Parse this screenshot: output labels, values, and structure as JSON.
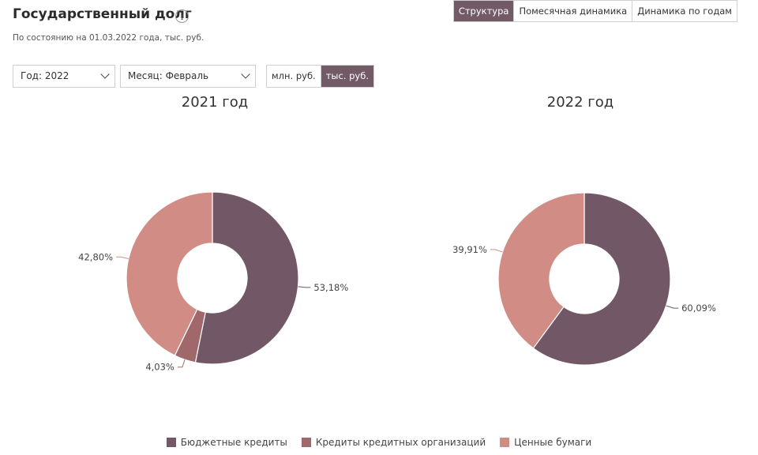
{
  "header": {
    "title": "Государственный долг",
    "info_glyph": "i",
    "subtitle": "По состоянию на 01.03.2022 года, тыс. руб."
  },
  "view_tabs": [
    {
      "label": "Структура",
      "active": true
    },
    {
      "label": "Помесячная динамика",
      "active": false
    },
    {
      "label": "Динамика по годам",
      "active": false
    }
  ],
  "filters": {
    "year": "Год: 2022",
    "month": "Месяц: Февраль"
  },
  "units": [
    {
      "label": "млн. руб.",
      "active": false
    },
    {
      "label": "тыс. руб.",
      "active": true
    }
  ],
  "colors": {
    "accent": "#735a67"
  },
  "chart_data": [
    {
      "type": "pie",
      "donut": true,
      "title": "2021 год",
      "slices": [
        {
          "name": "Бюджетные кредиты",
          "value": 53.18,
          "label": "53,18%",
          "color": "#725766"
        },
        {
          "name": "Кредиты кредитных организаций",
          "value": 4.03,
          "label": "4,03%",
          "color": "#a0686a"
        },
        {
          "name": "Ценные бумаги",
          "value": 42.8,
          "label": "42,80%",
          "color": "#d18c86"
        }
      ]
    },
    {
      "type": "pie",
      "donut": true,
      "title": "2022 год",
      "slices": [
        {
          "name": "Бюджетные кредиты",
          "value": 60.09,
          "label": "60,09%",
          "color": "#725766"
        },
        {
          "name": "Ценные бумаги",
          "value": 39.91,
          "label": "39,91%",
          "color": "#d18c86"
        }
      ]
    }
  ],
  "legend": [
    {
      "name": "Бюджетные кредиты",
      "color": "#725766"
    },
    {
      "name": "Кредиты кредитных организаций",
      "color": "#a0686a"
    },
    {
      "name": "Ценные бумаги",
      "color": "#d18c86"
    }
  ]
}
